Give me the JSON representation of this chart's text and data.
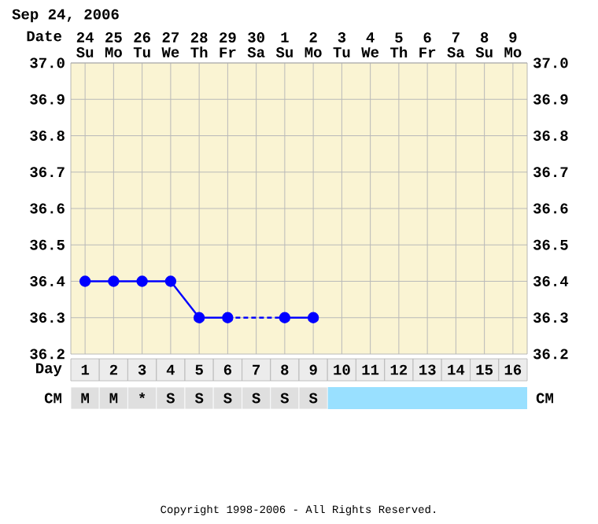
{
  "chart_data": {
    "type": "line",
    "title": "Sep 24, 2006",
    "xlabel": "Date",
    "categories": [
      "24 Su",
      "25 Mo",
      "26 Tu",
      "27 We",
      "28 Th",
      "29 Fr",
      "30 Sa",
      "1 Su",
      "2 Mo",
      "3 Tu",
      "4 We",
      "5 Th",
      "6 Fr",
      "7 Sa",
      "8 Su",
      "9 Mo"
    ],
    "series": [
      {
        "color": "#0000ff",
        "values": [
          36.4,
          36.4,
          36.4,
          36.4,
          36.3,
          36.3,
          null,
          36.3,
          36.3,
          null,
          null,
          null,
          null,
          null,
          null,
          null
        ]
      }
    ],
    "ylim": [
      36.2,
      37.0
    ],
    "yticks": [
      36.2,
      36.3,
      36.4,
      36.5,
      36.6,
      36.7,
      36.8,
      36.9,
      {
        "value": 37.0,
        "label": "37.0"
      }
    ],
    "y2lim": [
      36.2,
      37.0
    ],
    "y2ticks": [
      36.2,
      36.3,
      36.4,
      36.5,
      36.6,
      36.7,
      36.8,
      36.9,
      {
        "value": 37.0,
        "label": "37.0"
      }
    ],
    "grid": true,
    "marker": "circle",
    "line_style": "solid",
    "annotations": [
      "Day",
      "1",
      "2",
      "3",
      "4",
      "5",
      "6",
      "7",
      "8",
      "9",
      "10",
      "11",
      "12",
      "13",
      "14",
      "15",
      "16",
      "CM",
      "M",
      "M",
      "*",
      "S",
      "S",
      "S",
      "S",
      "S",
      "S",
      "CM",
      "Copyright 1998-2006 - All Rights Reserved."
    ]
  }
}
